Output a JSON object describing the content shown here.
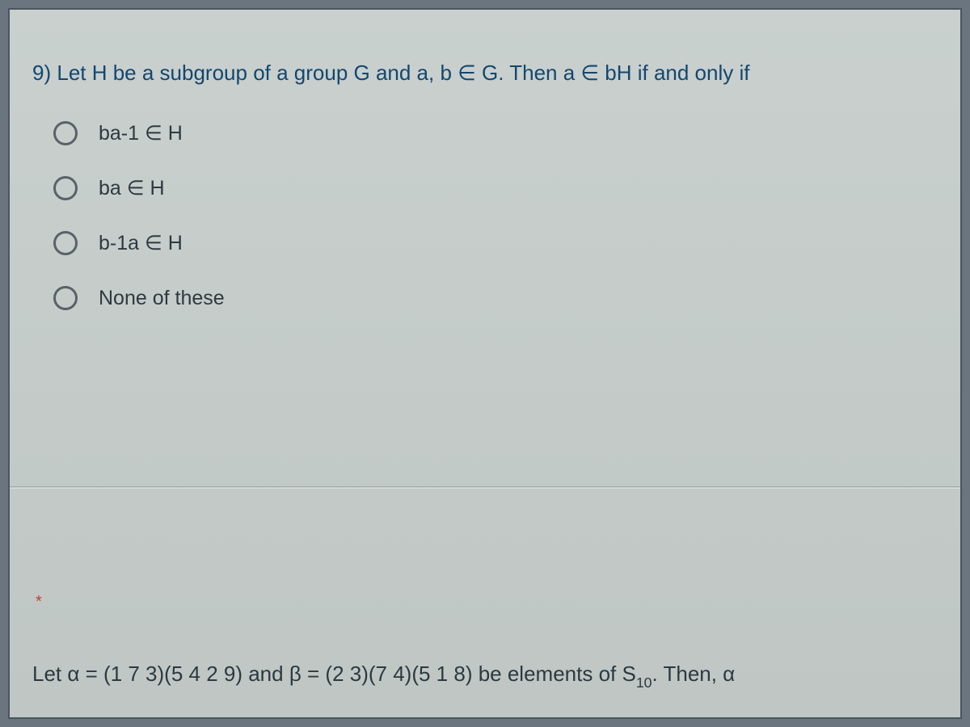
{
  "question9": {
    "number": "9)",
    "prompt": "Let H be a subgroup of a group G and a, b ∈ G. Then a ∈ bH if and only if",
    "options": [
      {
        "label": "ba-1 ∈ H"
      },
      {
        "label": "ba ∈ H"
      },
      {
        "label": "b-1a ∈ H"
      },
      {
        "label": "None of these"
      }
    ]
  },
  "nextQuestion": {
    "required_marker": "*",
    "text_prefix": "Let α = (1 7 3)(5 4 2 9) and β = (2 3)(7 4)(5 1 8) be elements of S",
    "subscript": "10",
    "text_suffix": ". Then, α"
  },
  "colors": {
    "question_color": "#13476f",
    "option_color": "#2e3a3f",
    "panel_bg": "#c4cbc9",
    "radio_border": "#5a6268",
    "star_color": "#c04030"
  }
}
